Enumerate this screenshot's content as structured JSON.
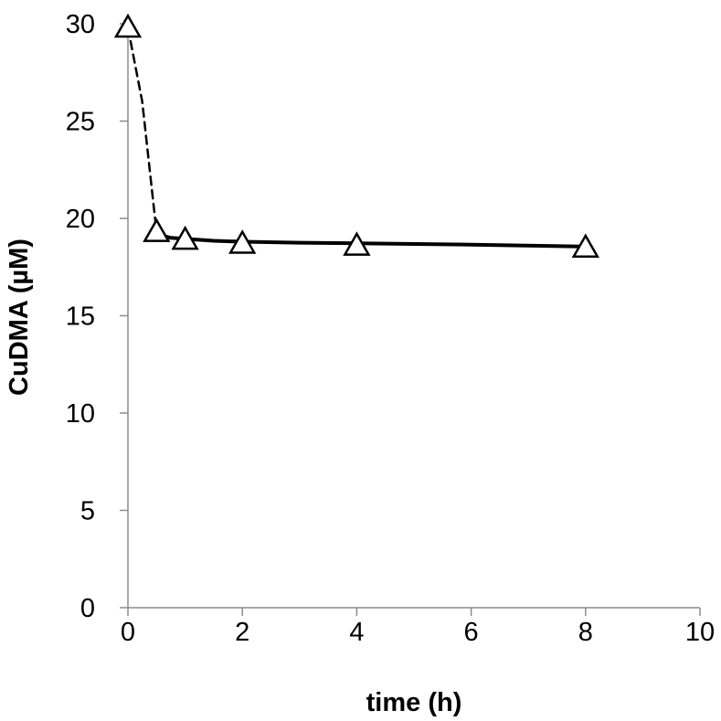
{
  "chart_data": {
    "type": "line",
    "title": "",
    "xlabel": "time (h)",
    "ylabel": "CuDMA (µM)",
    "xlim": [
      0,
      10
    ],
    "ylim": [
      0,
      30
    ],
    "x_ticks": [
      0,
      2,
      4,
      6,
      8,
      10
    ],
    "y_ticks": [
      0,
      5,
      10,
      15,
      20,
      25,
      30
    ],
    "grid": false,
    "legend": "none",
    "series": [
      {
        "marker": "open-triangle",
        "x": [
          0,
          0.5,
          1,
          2,
          4,
          8
        ],
        "y": [
          29.8,
          19.3,
          18.9,
          18.7,
          18.6,
          18.5
        ]
      }
    ],
    "fit_lines": [
      {
        "style": "dashed",
        "x": [
          0,
          0.25,
          0.5
        ],
        "y": [
          29.8,
          26.0,
          19.3
        ]
      },
      {
        "style": "solid",
        "x": [
          0.5,
          0.75,
          1,
          1.5,
          2,
          3,
          4,
          6,
          8
        ],
        "y": [
          19.2,
          19.0,
          18.95,
          18.85,
          18.8,
          18.75,
          18.72,
          18.65,
          18.55
        ]
      }
    ]
  }
}
